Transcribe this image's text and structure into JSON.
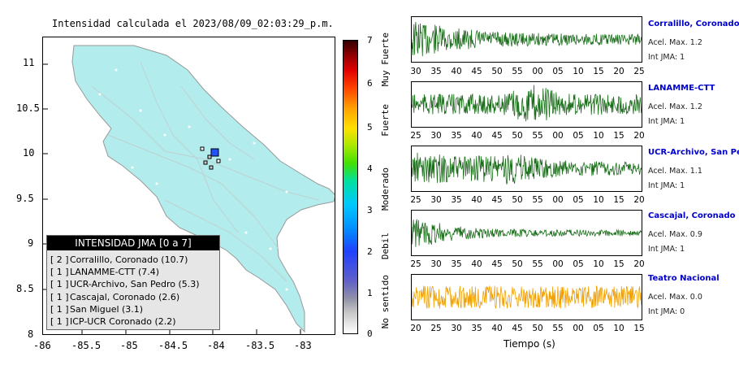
{
  "map": {
    "title": "Intensidad calculada el 2023/08/09_02:03:29_p.m.",
    "x_ticks": [
      "-86",
      "-85.5",
      "-85",
      "-84.5",
      "-84",
      "-83.5",
      "-83"
    ],
    "y_ticks": [
      "11",
      "10.5",
      "10",
      "9.5",
      "9",
      "8.5",
      "8"
    ]
  },
  "legend": {
    "title": "INTENSIDAD JMA [0 a 7]",
    "items": [
      {
        "level": "[ 2 ]",
        "label": "Corralillo, Coronado (10.7)"
      },
      {
        "level": "[ 1 ]",
        "label": "LANAMME-CTT (7.4)"
      },
      {
        "level": "[ 1 ]",
        "label": "UCR-Archivo, San Pedro (5.3)"
      },
      {
        "level": "[ 1 ]",
        "label": "Cascajal, Coronado (2.6)"
      },
      {
        "level": "[ 1 ]",
        "label": "San Miguel (3.1)"
      },
      {
        "level": "[ 1 ]",
        "label": "ICP-UCR Coronado (2.2)"
      }
    ]
  },
  "colorbar": {
    "ticks": [
      "0",
      "1",
      "2",
      "3",
      "4",
      "5",
      "6",
      "7"
    ],
    "words": [
      "No sentido",
      "Debil",
      "Moderado",
      "Fuerte",
      "Muy Fuerte"
    ]
  },
  "waveforms": [
    {
      "name": "Corralillo, Coronado",
      "accel": "Acel. Max. 1.2",
      "int": "Int JMA: 1",
      "color": "#1a6e1a",
      "ticks": [
        "30",
        "35",
        "40",
        "45",
        "50",
        "55",
        "00",
        "05",
        "10",
        "15",
        "20",
        "25"
      ]
    },
    {
      "name": "LANAMME-CTT",
      "accel": "Acel. Max. 1.2",
      "int": "Int JMA: 1",
      "color": "#1a6e1a",
      "ticks": [
        "25",
        "30",
        "35",
        "40",
        "45",
        "50",
        "55",
        "00",
        "05",
        "10",
        "15",
        "20"
      ]
    },
    {
      "name": "UCR-Archivo, San Pedro",
      "accel": "Acel. Max. 1.1",
      "int": "Int JMA: 1",
      "color": "#1a6e1a",
      "ticks": [
        "25",
        "30",
        "35",
        "40",
        "45",
        "50",
        "55",
        "00",
        "05",
        "10",
        "15",
        "20"
      ]
    },
    {
      "name": "Cascajal, Coronado",
      "accel": "Acel. Max. 0.9",
      "int": "Int JMA: 1",
      "color": "#1a6e1a",
      "ticks": [
        "25",
        "30",
        "35",
        "40",
        "45",
        "50",
        "55",
        "00",
        "05",
        "10",
        "15",
        "20"
      ]
    },
    {
      "name": "Teatro Nacional",
      "accel": "Acel. Max. 0.0",
      "int": "Int JMA: 0",
      "color": "#f0a000",
      "ticks": [
        "20",
        "25",
        "30",
        "35",
        "40",
        "45",
        "50",
        "55",
        "00",
        "05",
        "10",
        "15"
      ]
    }
  ],
  "xlabel": "Tiempo (s)"
}
